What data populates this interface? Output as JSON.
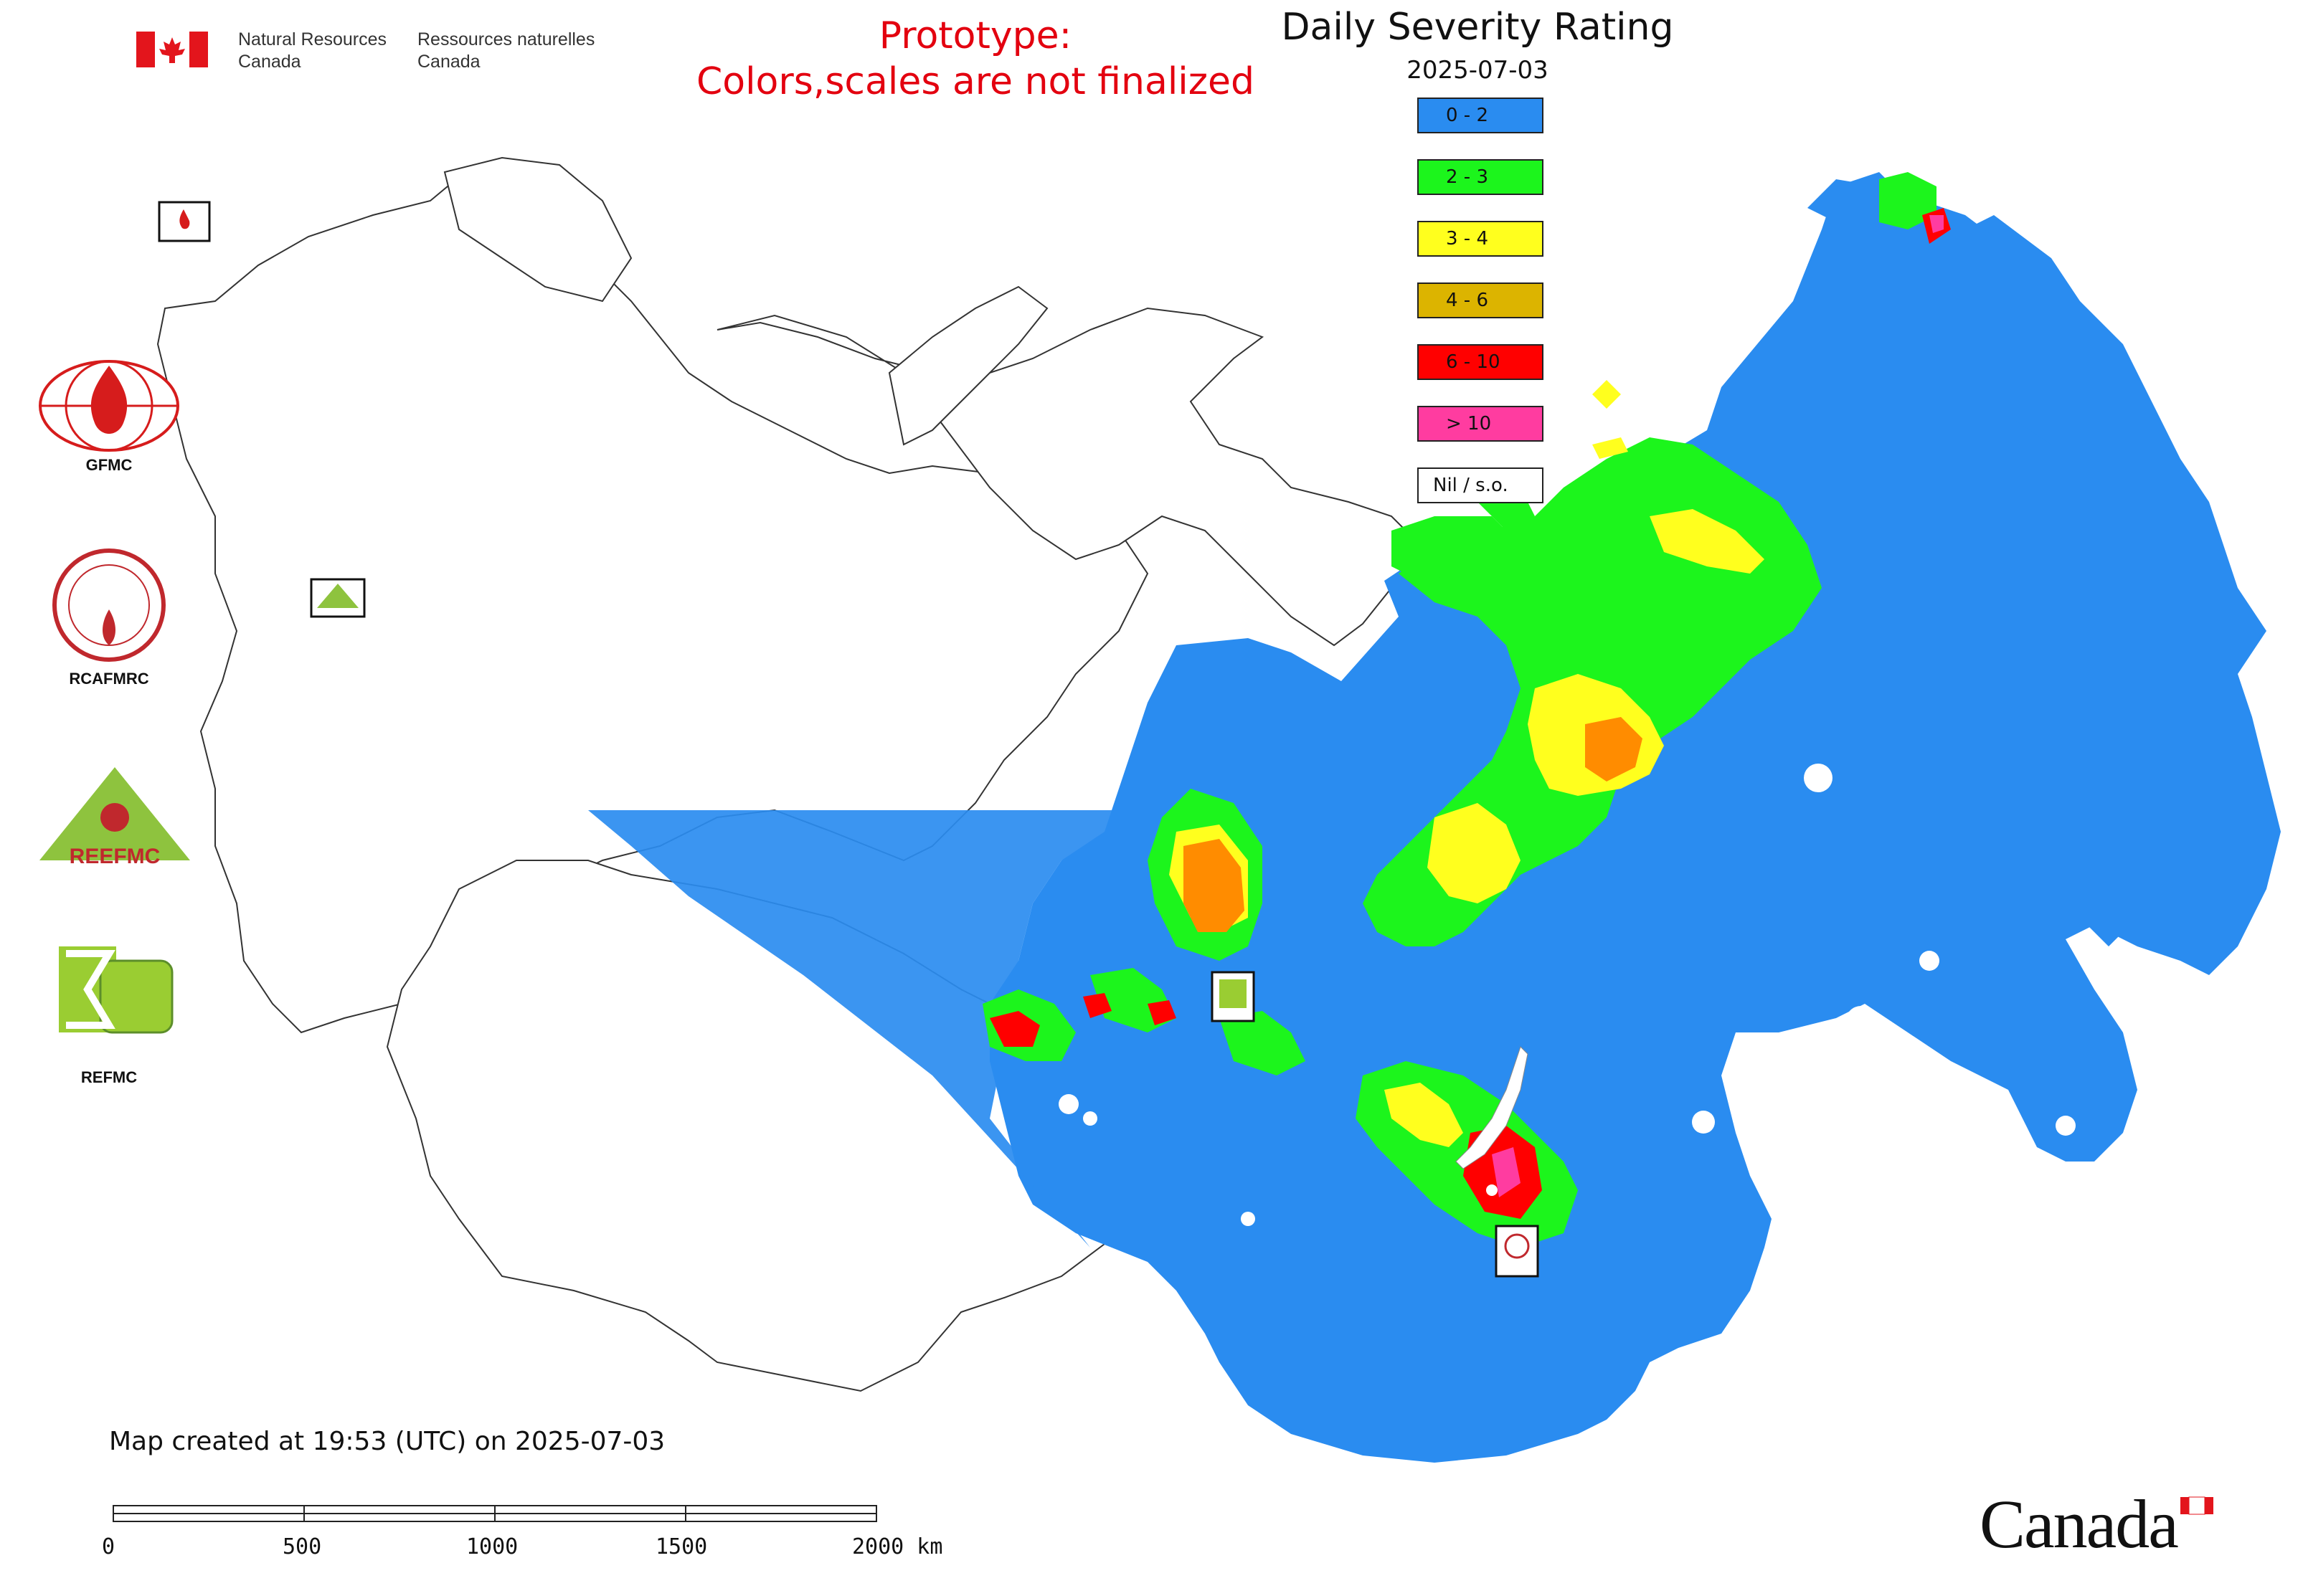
{
  "header": {
    "org_en": "Natural Resources\nCanada",
    "org_fr": "Ressources naturelles\nCanada",
    "prototype_line1": "Prototype:",
    "prototype_line2": "Colors,scales are not finalized",
    "title": "Daily Severity Rating",
    "date": "2025-07-03"
  },
  "legend": [
    {
      "label": "0 - 2",
      "color": "#2a8cf0"
    },
    {
      "label": "2 - 3",
      "color": "#1cf51c"
    },
    {
      "label": "3 - 4",
      "color": "#ffff1e"
    },
    {
      "label": "4 - 6",
      "color": "#dcb400"
    },
    {
      "label": "6 - 10",
      "color": "#ff0000"
    },
    {
      "label": "> 10",
      "color": "#ff3ca0"
    },
    {
      "label": "Nil / s.o.",
      "color": "#ffffff"
    }
  ],
  "logos": {
    "gfmc": "GFMC",
    "rcafmrc": "RCAFMRC",
    "reefmc": "REEFMC",
    "refmc": "REFMC",
    "rcafmrc_seal_text": "RCAFMRC"
  },
  "map_markers": {
    "gfmc": "GFMC",
    "reefmc": "REEFMC",
    "refmc": "REFMC",
    "rcafmrc": "RCAFMRC"
  },
  "footer": {
    "created": "Map created at 19:53 (UTC) on 2025-07-03",
    "scale_labels": [
      "0",
      "500",
      "1000",
      "1500",
      "2000 km"
    ],
    "wordmark": "Canada"
  },
  "colors": {
    "flag_red": "#e3151c",
    "prototype_red": "#e3000f",
    "outline": "#333333"
  }
}
